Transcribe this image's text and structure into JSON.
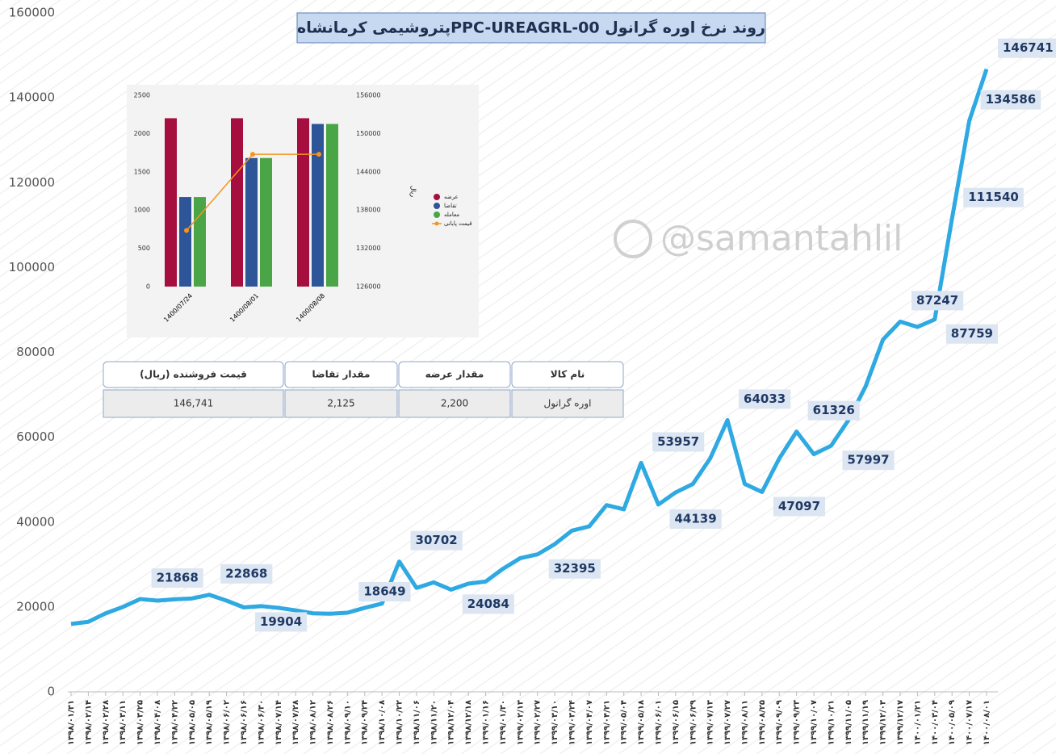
{
  "chart_data": [
    {
      "type": "line",
      "title": "روند نرخ اوره گرانول  PPC-UREAGRL-00پتروشیمی کرمانشاه",
      "categories": [
        "۱۳۹۸/۰۱/۳۱",
        "۱۳۹۸/۰۲/۱۴",
        "۱۳۹۸/۰۲/۲۸",
        "۱۳۹۸/۰۳/۱۱",
        "۱۳۹۸/۰۳/۲۵",
        "۱۳۹۸/۰۴/۰۸",
        "۱۳۹۸/۰۴/۲۲",
        "۱۳۹۸/۰۵/۰۵",
        "۱۳۹۸/۰۵/۱۹",
        "۱۳۹۸/۰۶/۰۲",
        "۱۳۹۸/۰۶/۱۶",
        "۱۳۹۸/۰۶/۳۰",
        "۱۳۹۸/۰۷/۱۴",
        "۱۳۹۸/۰۷/۲۸",
        "۱۳۹۸/۰۸/۱۲",
        "۱۳۹۸/۰۸/۲۶",
        "۱۳۹۸/۰۹/۱۰",
        "۱۳۹۸/۰۹/۲۴",
        "۱۳۹۸/۱۰/۰۸",
        "۱۳۹۸/۱۰/۲۲",
        "۱۳۹۸/۱۱/۰۶",
        "۱۳۹۸/۱۱/۲۰",
        "۱۳۹۸/۱۲/۰۴",
        "۱۳۹۸/۱۲/۱۸",
        "۱۳۹۹/۰۱/۱۶",
        "۱۳۹۹/۰۱/۳۰",
        "۱۳۹۹/۰۲/۱۳",
        "۱۳۹۹/۰۲/۲۷",
        "۱۳۹۹/۰۳/۱۰",
        "۱۳۹۹/۰۳/۲۴",
        "۱۳۹۹/۰۴/۰۷",
        "۱۳۹۹/۰۴/۲۱",
        "۱۳۹۹/۰۵/۰۴",
        "۱۳۹۹/۰۵/۱۸",
        "۱۳۹۹/۰۶/۰۱",
        "۱۳۹۹/۰۶/۱۵",
        "۱۳۹۹/۰۶/۲۹",
        "۱۳۹۹/۰۷/۱۳",
        "۱۳۹۹/۰۷/۲۷",
        "۱۳۹۹/۰۸/۱۱",
        "۱۳۹۹/۰۸/۲۵",
        "۱۳۹۹/۰۹/۰۹",
        "۱۳۹۹/۰۹/۲۳",
        "۱۳۹۹/۱۰/۰۷",
        "۱۳۹۹/۱۰/۲۱",
        "۱۳۹۹/۱۱/۰۵",
        "۱۳۹۹/۱۱/۱۹",
        "۱۳۹۹/۱۲/۰۳",
        "۱۳۹۹/۱۲/۱۷",
        "۱۴۰۰/۰۱/۲۱",
        "۱۴۰۰/۰۳/۰۴",
        "۱۴۰۰/۰۵/۰۹",
        "۱۴۰۰/۰۷/۱۷",
        "۱۴۰۰/۰۸/۰۱"
      ],
      "series": [
        {
          "name": "",
          "color": "#2ea9e1",
          "values": [
            16000,
            16500,
            18500,
            20000,
            21868,
            21500,
            21800,
            22000,
            22868,
            21500,
            19904,
            20200,
            19800,
            19200,
            18500,
            18400,
            18649,
            19800,
            20800,
            30702,
            24500,
            25800,
            24084,
            25500,
            26000,
            29000,
            31500,
            32395,
            34800,
            38000,
            39000,
            44000,
            43000,
            53957,
            44139,
            47000,
            49000,
            55000,
            64033,
            49000,
            47097,
            55000,
            61326,
            56000,
            57997,
            64000,
            72000,
            83000,
            87247,
            86000,
            87759,
            111540,
            134586,
            146741
          ],
          "value_labels": [
            null,
            null,
            null,
            null,
            "21868",
            null,
            null,
            null,
            "22868",
            null,
            "19904",
            null,
            null,
            null,
            null,
            null,
            "18649",
            null,
            null,
            "30702",
            null,
            null,
            "24084",
            null,
            null,
            null,
            null,
            "32395",
            null,
            null,
            null,
            null,
            null,
            "53957",
            "44139",
            null,
            null,
            null,
            "64033",
            null,
            "47097",
            null,
            "61326",
            null,
            "57997",
            null,
            null,
            null,
            "87247",
            null,
            "87759",
            "111540",
            "134586",
            "146741"
          ]
        }
      ],
      "ylim": [
        0,
        160000
      ],
      "yticks": [
        0,
        20000,
        40000,
        60000,
        80000,
        100000,
        120000,
        140000,
        160000
      ],
      "grid": false
    },
    {
      "type": "bar",
      "categories": [
        "1400/07/24",
        "1400/08/01",
        "1400/08/08"
      ],
      "series": [
        {
          "name": "عرضه",
          "color": "#a50e3f",
          "values": [
            2200,
            2200,
            2200
          ]
        },
        {
          "name": "تقاضا",
          "color": "#2e5597",
          "values": [
            1170,
            1680,
            2125
          ]
        },
        {
          "name": "معامله",
          "color": "#4aa547",
          "values": [
            1170,
            1680,
            2125
          ]
        },
        {
          "name": "قیمت پایانی",
          "color": "#f7941d",
          "type": "line",
          "axis": "y2",
          "values": [
            134800,
            146741,
            146741
          ]
        }
      ],
      "y2label": "ریال",
      "ylim": [
        0,
        2500
      ],
      "yticks": [
        0,
        500,
        1000,
        1500,
        2000,
        2500
      ],
      "y2lim": [
        126000,
        156000
      ],
      "y2ticks": [
        126000,
        132000,
        138000,
        144000,
        150000,
        156000
      ],
      "legend": "right"
    }
  ],
  "table": {
    "header": [
      "نام کالا",
      "مقدار عرضه",
      "مقدار تقاضا",
      "قیمت فروشنده (ریال)"
    ],
    "rows": [
      [
        "اوره گرانول",
        "2,200",
        "2,125",
        "146,741"
      ]
    ]
  },
  "watermark": "@samantahlil"
}
